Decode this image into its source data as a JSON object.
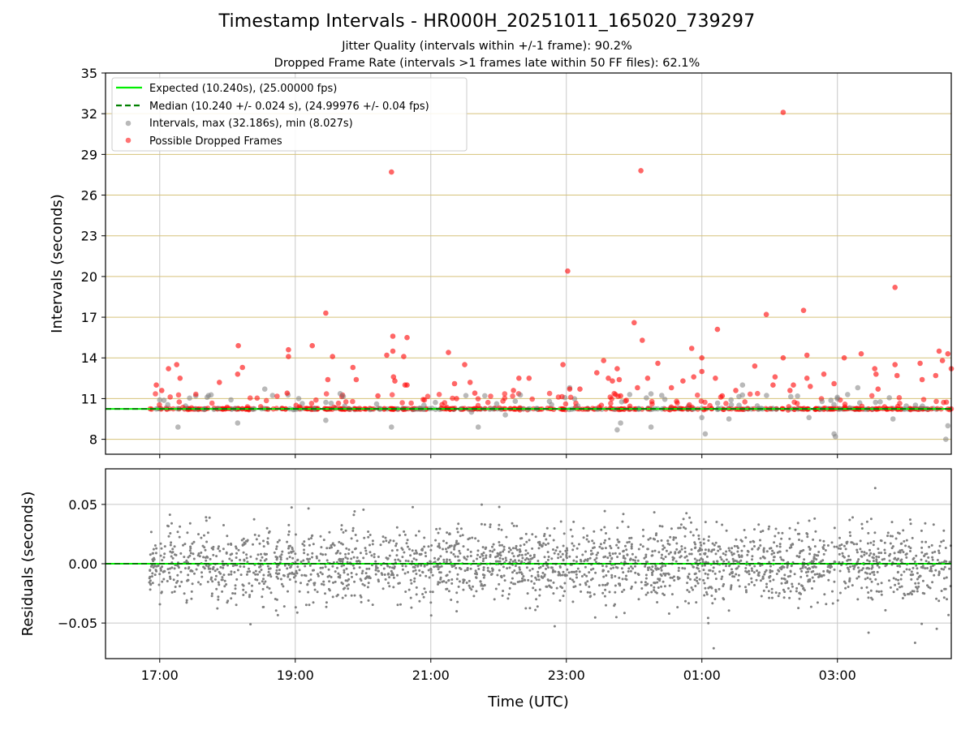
{
  "chart_data": {
    "title": "Timestamp Intervals - HR000H_20251011_165020_739297",
    "subtitle_lines": [
      "Jitter Quality (intervals within +/-1 frame): 90.2%",
      "Dropped Frame Rate (intervals >1 frames late within 50 FF files): 62.1%"
    ],
    "colors": {
      "expected": "#00ee00",
      "median": "#008000",
      "intervals": "#808080",
      "dropped": "#ff0000",
      "hgrid_top": "#d6c27a",
      "grid": "#c8c8c8"
    },
    "x_axis": {
      "label": "Time (UTC)",
      "range_hours": [
        16.2,
        28.68
      ],
      "ticks": [
        {
          "value": 17,
          "label": "17:00"
        },
        {
          "value": 19,
          "label": "19:00"
        },
        {
          "value": 21,
          "label": "21:00"
        },
        {
          "value": 23,
          "label": "23:00"
        },
        {
          "value": 25,
          "label": "01:00"
        },
        {
          "value": 27,
          "label": "03:00"
        }
      ]
    },
    "top_panel": {
      "type": "scatter",
      "ylabel": "Intervals (seconds)",
      "ylim": [
        6.9,
        35
      ],
      "y_ticks": [
        8,
        11,
        14,
        17,
        20,
        23,
        26,
        29,
        32,
        35
      ],
      "expected_value": 10.24,
      "median_value": 10.24,
      "data_start_hour": 16.84,
      "data_end_hour": 28.68,
      "legend_position": "top-left",
      "legend": [
        "Expected (10.240s), (25.00000 fps)",
        "Median (10.240 +/- 0.024 s), (24.99976 +/- 0.04 fps)",
        "Intervals, max (32.186s), min (8.027s)",
        "Possible Dropped Frames"
      ],
      "dropped_outliers": [
        {
          "x": 16.95,
          "y": 12.0
        },
        {
          "x": 17.03,
          "y": 11.6
        },
        {
          "x": 17.13,
          "y": 13.2
        },
        {
          "x": 17.25,
          "y": 13.5
        },
        {
          "x": 17.3,
          "y": 12.5
        },
        {
          "x": 17.88,
          "y": 12.2
        },
        {
          "x": 18.15,
          "y": 12.8
        },
        {
          "x": 18.16,
          "y": 14.9
        },
        {
          "x": 18.22,
          "y": 13.3
        },
        {
          "x": 18.9,
          "y": 14.6
        },
        {
          "x": 18.9,
          "y": 14.1
        },
        {
          "x": 18.88,
          "y": 11.4
        },
        {
          "x": 19.25,
          "y": 14.9
        },
        {
          "x": 19.45,
          "y": 17.3
        },
        {
          "x": 19.48,
          "y": 12.4
        },
        {
          "x": 19.55,
          "y": 14.1
        },
        {
          "x": 19.85,
          "y": 13.3
        },
        {
          "x": 19.9,
          "y": 12.4
        },
        {
          "x": 20.22,
          "y": 11.2
        },
        {
          "x": 20.35,
          "y": 14.2
        },
        {
          "x": 20.42,
          "y": 27.7
        },
        {
          "x": 20.44,
          "y": 15.6
        },
        {
          "x": 20.44,
          "y": 14.5
        },
        {
          "x": 20.45,
          "y": 12.6
        },
        {
          "x": 20.47,
          "y": 12.3
        },
        {
          "x": 20.6,
          "y": 14.1
        },
        {
          "x": 20.62,
          "y": 12.0
        },
        {
          "x": 20.65,
          "y": 15.5
        },
        {
          "x": 20.65,
          "y": 12.0
        },
        {
          "x": 21.26,
          "y": 14.4
        },
        {
          "x": 21.35,
          "y": 12.1
        },
        {
          "x": 21.38,
          "y": 11.0
        },
        {
          "x": 21.5,
          "y": 13.5
        },
        {
          "x": 21.58,
          "y": 12.2
        },
        {
          "x": 21.65,
          "y": 11.4
        },
        {
          "x": 22.22,
          "y": 11.6
        },
        {
          "x": 22.3,
          "y": 12.5
        },
        {
          "x": 22.45,
          "y": 12.5
        },
        {
          "x": 22.95,
          "y": 13.5
        },
        {
          "x": 23.02,
          "y": 20.4
        },
        {
          "x": 23.05,
          "y": 11.7
        },
        {
          "x": 23.2,
          "y": 11.7
        },
        {
          "x": 23.45,
          "y": 12.9
        },
        {
          "x": 23.55,
          "y": 13.8
        },
        {
          "x": 23.62,
          "y": 12.5
        },
        {
          "x": 23.68,
          "y": 12.3
        },
        {
          "x": 23.75,
          "y": 13.2
        },
        {
          "x": 23.78,
          "y": 12.4
        },
        {
          "x": 23.8,
          "y": 11.2
        },
        {
          "x": 24.0,
          "y": 16.6
        },
        {
          "x": 24.05,
          "y": 11.8
        },
        {
          "x": 24.1,
          "y": 27.8
        },
        {
          "x": 24.12,
          "y": 15.3
        },
        {
          "x": 24.2,
          "y": 12.5
        },
        {
          "x": 24.35,
          "y": 13.6
        },
        {
          "x": 24.55,
          "y": 11.8
        },
        {
          "x": 24.72,
          "y": 12.3
        },
        {
          "x": 24.85,
          "y": 14.7
        },
        {
          "x": 24.88,
          "y": 12.6
        },
        {
          "x": 25.0,
          "y": 14.0
        },
        {
          "x": 25.0,
          "y": 13.0
        },
        {
          "x": 25.2,
          "y": 12.5
        },
        {
          "x": 25.23,
          "y": 16.1
        },
        {
          "x": 25.3,
          "y": 11.2
        },
        {
          "x": 25.5,
          "y": 11.6
        },
        {
          "x": 25.78,
          "y": 13.4
        },
        {
          "x": 25.95,
          "y": 17.2
        },
        {
          "x": 26.05,
          "y": 12.0
        },
        {
          "x": 26.08,
          "y": 12.6
        },
        {
          "x": 26.2,
          "y": 32.1
        },
        {
          "x": 26.2,
          "y": 14.0
        },
        {
          "x": 26.3,
          "y": 11.6
        },
        {
          "x": 26.35,
          "y": 12.0
        },
        {
          "x": 26.5,
          "y": 17.5
        },
        {
          "x": 26.55,
          "y": 14.2
        },
        {
          "x": 26.55,
          "y": 12.5
        },
        {
          "x": 26.6,
          "y": 11.9
        },
        {
          "x": 26.8,
          "y": 12.8
        },
        {
          "x": 26.95,
          "y": 12.1
        },
        {
          "x": 27.1,
          "y": 14.0
        },
        {
          "x": 27.35,
          "y": 14.3
        },
        {
          "x": 27.55,
          "y": 13.2
        },
        {
          "x": 27.57,
          "y": 12.8
        },
        {
          "x": 27.6,
          "y": 11.7
        },
        {
          "x": 27.85,
          "y": 13.5
        },
        {
          "x": 27.85,
          "y": 19.2
        },
        {
          "x": 27.88,
          "y": 12.7
        },
        {
          "x": 28.22,
          "y": 13.6
        },
        {
          "x": 28.25,
          "y": 12.4
        },
        {
          "x": 28.45,
          "y": 12.7
        },
        {
          "x": 28.5,
          "y": 14.5
        },
        {
          "x": 28.55,
          "y": 13.8
        },
        {
          "x": 28.63,
          "y": 14.3
        },
        {
          "x": 28.68,
          "y": 13.2
        }
      ],
      "grey_outliers": [
        {
          "x": 17.0,
          "y": 10.9
        },
        {
          "x": 17.27,
          "y": 8.9
        },
        {
          "x": 17.7,
          "y": 11.1
        },
        {
          "x": 18.15,
          "y": 9.2
        },
        {
          "x": 18.55,
          "y": 11.7
        },
        {
          "x": 19.05,
          "y": 11.0
        },
        {
          "x": 19.45,
          "y": 9.4
        },
        {
          "x": 20.2,
          "y": 10.6
        },
        {
          "x": 20.42,
          "y": 8.9
        },
        {
          "x": 21.6,
          "y": 10.0
        },
        {
          "x": 21.7,
          "y": 8.9
        },
        {
          "x": 22.1,
          "y": 9.8
        },
        {
          "x": 22.75,
          "y": 10.8
        },
        {
          "x": 23.05,
          "y": 11.8
        },
        {
          "x": 23.8,
          "y": 9.2
        },
        {
          "x": 23.75,
          "y": 8.7
        },
        {
          "x": 24.25,
          "y": 8.9
        },
        {
          "x": 25.0,
          "y": 9.6
        },
        {
          "x": 25.05,
          "y": 8.4
        },
        {
          "x": 25.4,
          "y": 9.5
        },
        {
          "x": 25.6,
          "y": 12.0
        },
        {
          "x": 26.58,
          "y": 9.6
        },
        {
          "x": 26.95,
          "y": 8.4
        },
        {
          "x": 26.97,
          "y": 8.2
        },
        {
          "x": 27.15,
          "y": 11.3
        },
        {
          "x": 27.3,
          "y": 11.8
        },
        {
          "x": 27.82,
          "y": 9.5
        },
        {
          "x": 28.6,
          "y": 8.0
        },
        {
          "x": 28.63,
          "y": 9.0
        }
      ]
    },
    "bottom_panel": {
      "type": "scatter",
      "ylabel": "Residuals (seconds)",
      "ylim": [
        -0.08,
        0.08
      ],
      "y_ticks": [
        {
          "value": 0.05,
          "label": "0.05"
        },
        {
          "value": 0.0,
          "label": "0.00"
        },
        {
          "value": -0.05,
          "label": "−0.05"
        }
      ],
      "zero_line": 0.0,
      "residual_spread_std": 0.016
    }
  }
}
